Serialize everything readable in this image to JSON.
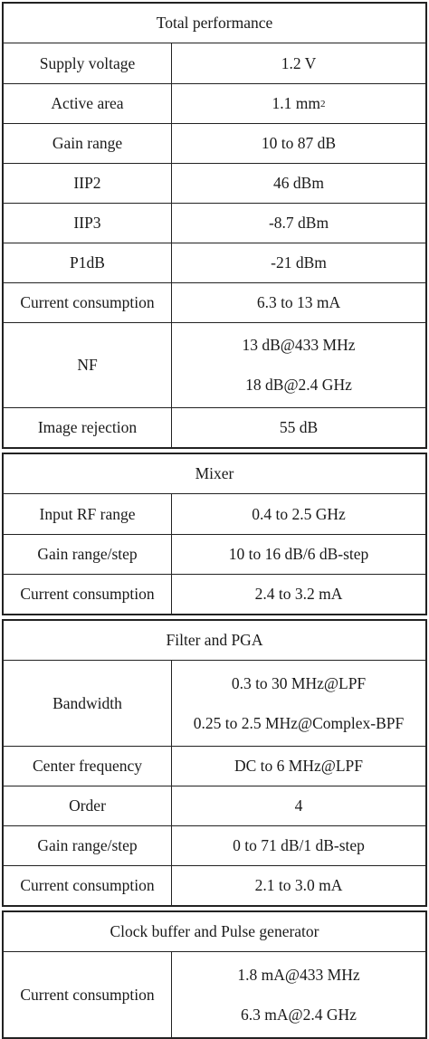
{
  "sections": [
    {
      "title": "Total performance",
      "rows": [
        {
          "label": "Supply voltage",
          "values": [
            "1.2 V"
          ]
        },
        {
          "label": "Active area",
          "values": [
            "1.1 mm"
          ],
          "sup": "2"
        },
        {
          "label": "Gain range",
          "values": [
            "10 to 87 dB"
          ]
        },
        {
          "label": "IIP2",
          "values": [
            "46 dBm"
          ]
        },
        {
          "label": "IIP3",
          "values": [
            "-8.7 dBm"
          ]
        },
        {
          "label": "P1dB",
          "values": [
            "-21 dBm"
          ]
        },
        {
          "label": "Current consumption",
          "values": [
            "6.3 to 13 mA"
          ]
        },
        {
          "label": "NF",
          "values": [
            "13 dB@433 MHz",
            "18 dB@2.4 GHz"
          ]
        },
        {
          "label": "Image rejection",
          "values": [
            "55 dB"
          ]
        }
      ]
    },
    {
      "title": "Mixer",
      "rows": [
        {
          "label": "Input RF range",
          "values": [
            "0.4 to 2.5 GHz"
          ]
        },
        {
          "label": "Gain range/step",
          "values": [
            "10 to 16 dB/6 dB-step"
          ]
        },
        {
          "label": "Current consumption",
          "values": [
            "2.4 to 3.2 mA"
          ]
        }
      ]
    },
    {
      "title": "Filter and PGA",
      "rows": [
        {
          "label": "Bandwidth",
          "values": [
            "0.3 to 30 MHz@LPF",
            "0.25 to 2.5 MHz@Complex-BPF"
          ]
        },
        {
          "label": "Center frequency",
          "values": [
            "DC to 6 MHz@LPF"
          ]
        },
        {
          "label": "Order",
          "values": [
            "4"
          ]
        },
        {
          "label": "Gain range/step",
          "values": [
            "0 to 71 dB/1 dB-step"
          ]
        },
        {
          "label": "Current consumption",
          "values": [
            "2.1 to 3.0 mA"
          ]
        }
      ]
    },
    {
      "title": "Clock buffer and Pulse generator",
      "rows": [
        {
          "label": "Current consumption",
          "values": [
            "1.8 mA@433 MHz",
            "6.3 mA@2.4 GHz"
          ]
        }
      ]
    }
  ]
}
